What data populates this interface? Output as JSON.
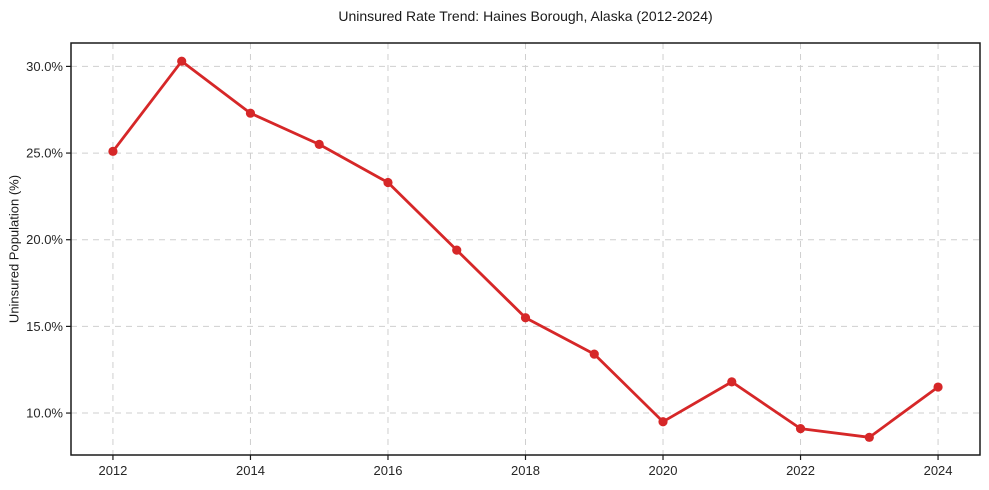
{
  "chart_data": {
    "type": "line",
    "title": "Uninsured Rate Trend: Haines Borough, Alaska (2012-2024)",
    "xlabel": "",
    "ylabel": "Uninsured Population (%)",
    "x": [
      2012,
      2013,
      2014,
      2015,
      2016,
      2017,
      2018,
      2019,
      2020,
      2021,
      2022,
      2023,
      2024
    ],
    "values": [
      25.1,
      30.3,
      27.3,
      25.5,
      23.3,
      19.4,
      15.5,
      13.4,
      9.5,
      11.8,
      9.1,
      8.6,
      11.5
    ],
    "xlim": [
      2011.39,
      2024.61
    ],
    "ylim": [
      7.58,
      31.35
    ],
    "xticks": {
      "values": [
        2012,
        2014,
        2016,
        2018,
        2020,
        2022,
        2024
      ],
      "labels": [
        "2012",
        "2014",
        "2016",
        "2018",
        "2020",
        "2022",
        "2024"
      ]
    },
    "yticks": {
      "values": [
        10,
        15,
        20,
        25,
        30
      ],
      "labels": [
        "10.0%",
        "15.0%",
        "20.0%",
        "25.0%",
        "30.0%"
      ]
    },
    "grid": true,
    "grid_style": "dashed",
    "legend": false,
    "marker": "circle",
    "line_color": "#d62728",
    "grid_color": "#cfcfcf",
    "axis_color": "#1a1a1a",
    "text_color": "#262626"
  }
}
